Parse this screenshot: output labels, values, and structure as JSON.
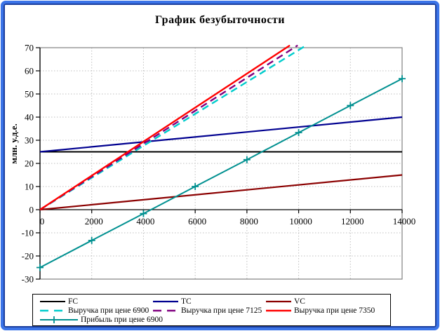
{
  "chart_data": {
    "type": "line",
    "title": "График безубыточности",
    "xlabel": "",
    "ylabel": "млн. у.д.е.",
    "xlim": [
      0,
      14000
    ],
    "ylim": [
      -30,
      70
    ],
    "x_ticks": [
      0,
      2000,
      4000,
      6000,
      8000,
      10000,
      12000,
      14000
    ],
    "y_ticks": [
      -30,
      -20,
      -10,
      0,
      10,
      20,
      30,
      40,
      50,
      60,
      70
    ],
    "grid": true,
    "grid_color": "#BFBFBF",
    "plot_border_color": "#808080",
    "axis_color": "#000000",
    "frame_color": "#3B74E8",
    "frame_inner_color": "#1C3F9E",
    "legend_position": "bottom",
    "series": [
      {
        "name": "FC",
        "color": "#000000",
        "style": "solid",
        "width": 2,
        "x": [
          0,
          14000
        ],
        "y": [
          25,
          25
        ]
      },
      {
        "name": "TC",
        "color": "#000090",
        "style": "solid",
        "width": 2.2,
        "x": [
          0,
          14000
        ],
        "y": [
          25,
          40
        ]
      },
      {
        "name": "VC",
        "color": "#8B0000",
        "style": "solid",
        "width": 2.2,
        "x": [
          0,
          14000
        ],
        "y": [
          0,
          15
        ]
      },
      {
        "name": "Выручка при цене 6900",
        "color": "#00CCCC",
        "style": "dashed",
        "width": 2.4,
        "x": [
          0,
          10145
        ],
        "y": [
          0,
          70
        ],
        "clipped_at_top": true
      },
      {
        "name": "Выручка при цене 7125",
        "color": "#800080",
        "style": "dashed",
        "width": 2.4,
        "x": [
          0,
          9825
        ],
        "y": [
          0,
          70
        ],
        "clipped_at_top": true
      },
      {
        "name": "Выручка при цене 7350",
        "color": "#FF0000",
        "style": "solid",
        "width": 2.4,
        "x": [
          0,
          9524
        ],
        "y": [
          0,
          70
        ],
        "clipped_at_top": true
      },
      {
        "name": "Прибыль при цене 6900",
        "color": "#009090",
        "style": "solid",
        "marker": "plus",
        "width": 2,
        "x": [
          0,
          2000,
          4000,
          6000,
          8000,
          10000,
          12000,
          14000
        ],
        "y": [
          -25,
          -13.3,
          -1.7,
          10,
          21.6,
          33.3,
          45,
          56.6
        ]
      }
    ]
  }
}
